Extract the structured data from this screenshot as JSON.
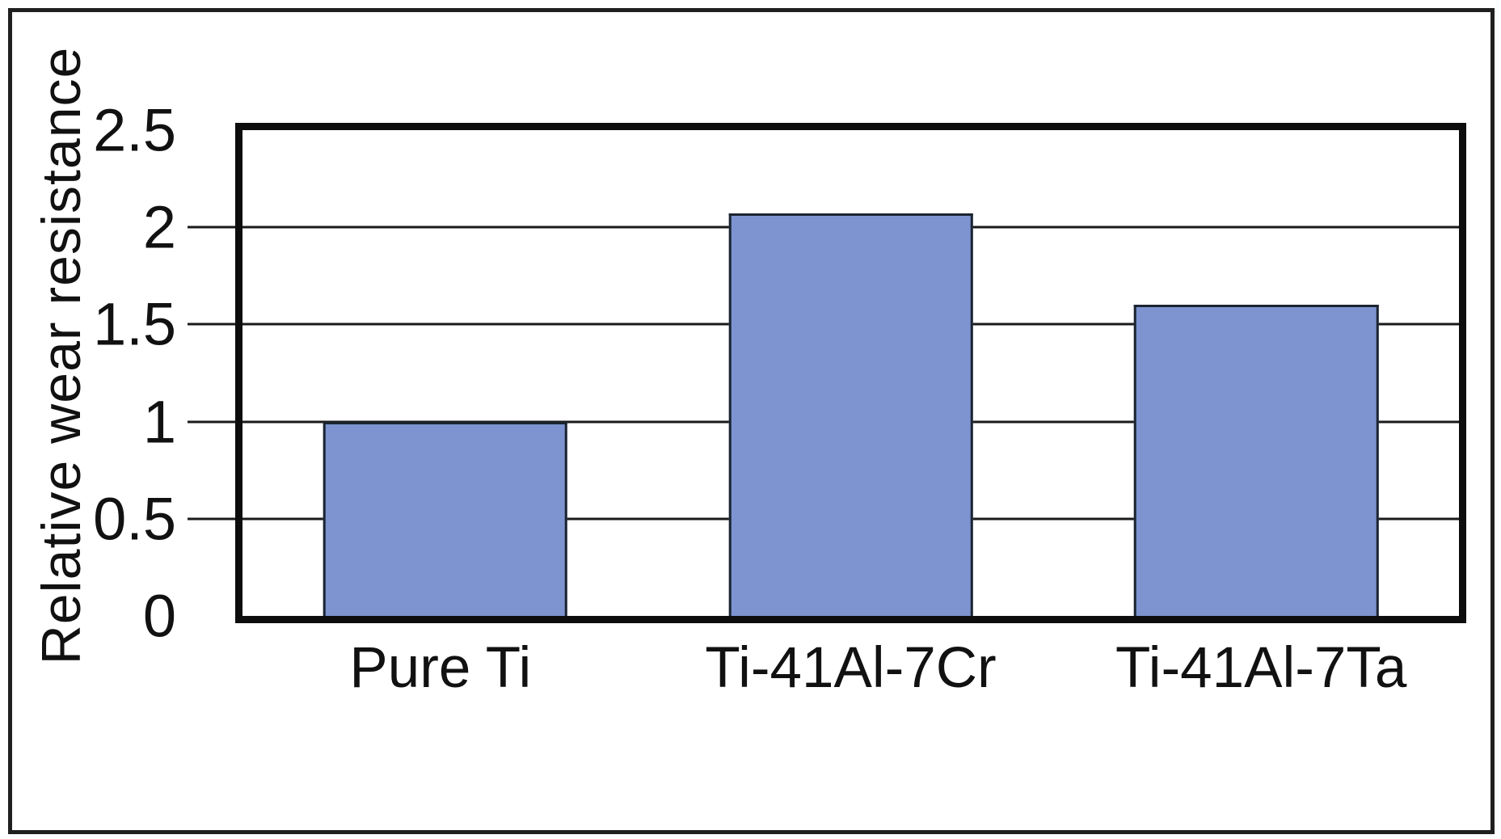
{
  "figure": {
    "background_color": "#ffffff",
    "frame_color": "#1f1f1f"
  },
  "chart_data": {
    "type": "bar",
    "title": "",
    "categories": [
      "Pure Ti",
      "Ti-41Al-7Cr",
      "Ti-41Al-7Ta"
    ],
    "values": [
      1.0,
      2.07,
      1.6
    ],
    "ylabel": "Relative wear resistance",
    "xlabel": "",
    "ylim": [
      0,
      2.5
    ],
    "yticks": [
      0,
      0.5,
      1,
      1.5,
      2,
      2.5
    ],
    "ytick_labels": [
      "0",
      "0.5",
      "1",
      "1.5",
      "2",
      "2.5"
    ],
    "grid": "horizontal",
    "legend": "none",
    "bar_color": "#7d94d0",
    "bar_border_color": "#1c2430",
    "gridline_color": "#1a1a1a",
    "axis_color": "#0d0d0d"
  }
}
